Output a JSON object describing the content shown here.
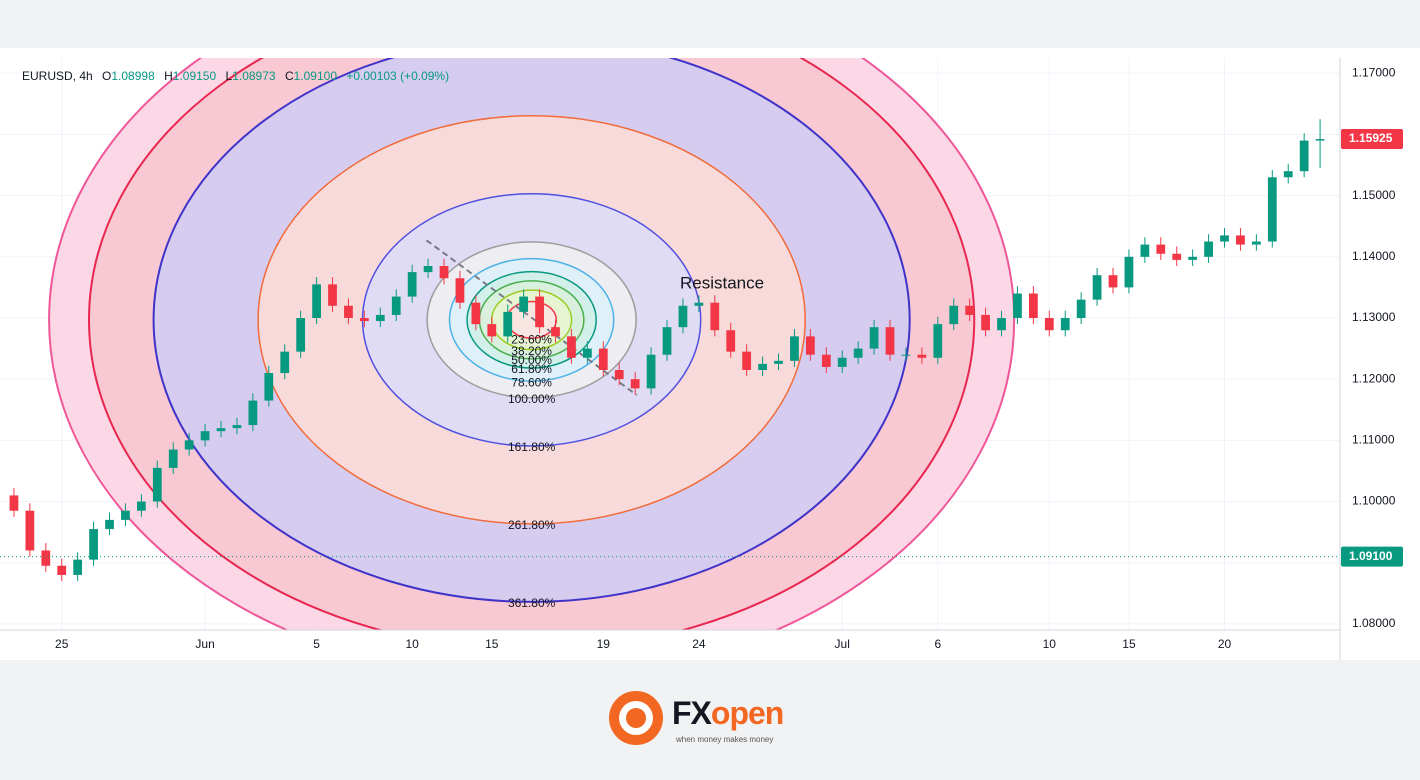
{
  "header": {
    "symbol": "EURUSD, 4h",
    "ohlc": [
      {
        "key": "O",
        "value": "1.08998"
      },
      {
        "key": "H",
        "value": "1.09150"
      },
      {
        "key": "L",
        "value": "1.08973"
      },
      {
        "key": "C",
        "value": "1.09100"
      }
    ],
    "change": "+0.00103 (+0.09%)"
  },
  "logo": {
    "prefix": "FX",
    "suffix": "open",
    "tagline": "when money makes money"
  },
  "chart_data": {
    "type": "candlestick",
    "up_color": "#089981",
    "down_color": "#f23645",
    "candles": [
      [
        1.101,
        1.1022,
        1.0975,
        1.0985
      ],
      [
        1.0985,
        1.0997,
        1.091,
        1.092
      ],
      [
        1.092,
        1.0932,
        1.0885,
        1.0895
      ],
      [
        1.0895,
        1.0907,
        1.087,
        1.088
      ],
      [
        1.088,
        1.0917,
        1.087,
        1.0905
      ],
      [
        1.0905,
        1.0967,
        1.0895,
        1.0955
      ],
      [
        1.0955,
        1.0982,
        1.0945,
        1.097
      ],
      [
        1.097,
        1.0997,
        1.096,
        1.0985
      ],
      [
        1.0985,
        1.1012,
        1.0975,
        1.1
      ],
      [
        1.1,
        1.1067,
        1.099,
        1.1055
      ],
      [
        1.1055,
        1.1097,
        1.1045,
        1.1085
      ],
      [
        1.1085,
        1.1112,
        1.1075,
        1.11
      ],
      [
        1.11,
        1.1127,
        1.109,
        1.1115
      ],
      [
        1.1115,
        1.1132,
        1.1105,
        1.112
      ],
      [
        1.112,
        1.1137,
        1.111,
        1.1125
      ],
      [
        1.1125,
        1.1177,
        1.1115,
        1.1165
      ],
      [
        1.1165,
        1.1222,
        1.1155,
        1.121
      ],
      [
        1.121,
        1.1257,
        1.12,
        1.1245
      ],
      [
        1.1245,
        1.1312,
        1.1235,
        1.13
      ],
      [
        1.13,
        1.1367,
        1.129,
        1.1355
      ],
      [
        1.1355,
        1.1367,
        1.131,
        1.132
      ],
      [
        1.132,
        1.1332,
        1.129,
        1.13
      ],
      [
        1.13,
        1.1312,
        1.1285,
        1.1295
      ],
      [
        1.1295,
        1.1317,
        1.1285,
        1.1305
      ],
      [
        1.1305,
        1.1347,
        1.1295,
        1.1335
      ],
      [
        1.1335,
        1.1387,
        1.1325,
        1.1375
      ],
      [
        1.1375,
        1.1397,
        1.1365,
        1.1385
      ],
      [
        1.1385,
        1.1397,
        1.1355,
        1.1365
      ],
      [
        1.1365,
        1.1377,
        1.1315,
        1.1325
      ],
      [
        1.1325,
        1.1337,
        1.128,
        1.129
      ],
      [
        1.129,
        1.1302,
        1.126,
        1.127
      ],
      [
        1.127,
        1.1322,
        1.126,
        1.131
      ],
      [
        1.131,
        1.1347,
        1.13,
        1.1335
      ],
      [
        1.1335,
        1.1347,
        1.1275,
        1.1285
      ],
      [
        1.1285,
        1.1297,
        1.126,
        1.127
      ],
      [
        1.127,
        1.1282,
        1.1225,
        1.1235
      ],
      [
        1.1235,
        1.1262,
        1.1225,
        1.125
      ],
      [
        1.125,
        1.1262,
        1.1205,
        1.1215
      ],
      [
        1.1215,
        1.1227,
        1.119,
        1.12
      ],
      [
        1.12,
        1.1212,
        1.1175,
        1.1185
      ],
      [
        1.1185,
        1.1252,
        1.1175,
        1.124
      ],
      [
        1.124,
        1.1297,
        1.123,
        1.1285
      ],
      [
        1.1285,
        1.1332,
        1.1275,
        1.132
      ],
      [
        1.132,
        1.1337,
        1.131,
        1.1325
      ],
      [
        1.1325,
        1.1337,
        1.127,
        1.128
      ],
      [
        1.128,
        1.1292,
        1.1235,
        1.1245
      ],
      [
        1.1245,
        1.1257,
        1.1205,
        1.1215
      ],
      [
        1.1215,
        1.1237,
        1.1205,
        1.1225
      ],
      [
        1.1225,
        1.1242,
        1.1215,
        1.123
      ],
      [
        1.123,
        1.1282,
        1.122,
        1.127
      ],
      [
        1.127,
        1.1282,
        1.123,
        1.124
      ],
      [
        1.124,
        1.1252,
        1.121,
        1.122
      ],
      [
        1.122,
        1.1247,
        1.121,
        1.1235
      ],
      [
        1.1235,
        1.1262,
        1.1225,
        1.125
      ],
      [
        1.125,
        1.1297,
        1.124,
        1.1285
      ],
      [
        1.1285,
        1.1297,
        1.123,
        1.124
      ],
      [
        1.124,
        1.1252,
        1.123,
        1.124
      ],
      [
        1.124,
        1.1252,
        1.1225,
        1.1235
      ],
      [
        1.1235,
        1.1302,
        1.1225,
        1.129
      ],
      [
        1.129,
        1.1332,
        1.128,
        1.132
      ],
      [
        1.132,
        1.1332,
        1.1295,
        1.1305
      ],
      [
        1.1305,
        1.1317,
        1.127,
        1.128
      ],
      [
        1.128,
        1.1312,
        1.127,
        1.13
      ],
      [
        1.13,
        1.1352,
        1.129,
        1.134
      ],
      [
        1.134,
        1.1352,
        1.129,
        1.13
      ],
      [
        1.13,
        1.1312,
        1.127,
        1.128
      ],
      [
        1.128,
        1.1312,
        1.127,
        1.13
      ],
      [
        1.13,
        1.1342,
        1.129,
        1.133
      ],
      [
        1.133,
        1.1382,
        1.132,
        1.137
      ],
      [
        1.137,
        1.1382,
        1.134,
        1.135
      ],
      [
        1.135,
        1.1412,
        1.134,
        1.14
      ],
      [
        1.14,
        1.1432,
        1.139,
        1.142
      ],
      [
        1.142,
        1.1432,
        1.1395,
        1.1405
      ],
      [
        1.1405,
        1.1417,
        1.1385,
        1.1395
      ],
      [
        1.1395,
        1.1412,
        1.1385,
        1.14
      ],
      [
        1.14,
        1.1437,
        1.139,
        1.1425
      ],
      [
        1.1425,
        1.1447,
        1.1415,
        1.1435
      ],
      [
        1.1435,
        1.1447,
        1.141,
        1.142
      ],
      [
        1.142,
        1.1437,
        1.141,
        1.1425
      ],
      [
        1.1425,
        1.1542,
        1.1415,
        1.153
      ],
      [
        1.153,
        1.1552,
        1.152,
        1.154
      ],
      [
        1.154,
        1.1602,
        1.153,
        1.159
      ],
      [
        1.159,
        1.1625,
        1.1545,
        1.15925
      ]
    ],
    "xlim": [
      -0.75,
      83.25
    ],
    "xticks": [
      {
        "value": 3,
        "label": "25"
      },
      {
        "value": 12,
        "label": "Jun"
      },
      {
        "value": 19,
        "label": "5"
      },
      {
        "value": 25,
        "label": "10"
      },
      {
        "value": 30,
        "label": "15"
      },
      {
        "value": 37,
        "label": "19"
      },
      {
        "value": 43,
        "label": "24"
      },
      {
        "value": 52,
        "label": "Jul"
      },
      {
        "value": 58,
        "label": "6"
      },
      {
        "value": 65,
        "label": "10"
      },
      {
        "value": 70,
        "label": "15"
      },
      {
        "value": 76,
        "label": "20"
      }
    ],
    "ylim": [
      1.079,
      1.1725
    ],
    "yticks": [
      {
        "value": 1.08,
        "label": "1.08000"
      },
      {
        "value": 1.09,
        "label": "1.09000"
      },
      {
        "value": 1.1,
        "label": "1.10000"
      },
      {
        "value": 1.11,
        "label": "1.11000"
      },
      {
        "value": 1.12,
        "label": "1.12000"
      },
      {
        "value": 1.13,
        "label": "1.13000"
      },
      {
        "value": 1.14,
        "label": "1.14000"
      },
      {
        "value": 1.15,
        "label": "1.15000"
      },
      {
        "value": 1.16,
        "label": "1.16000"
      },
      {
        "value": 1.17,
        "label": "1.17000"
      }
    ],
    "grid": true,
    "price_labels": [
      {
        "value": 1.15925,
        "label": "1.15925",
        "color": "#f23645"
      },
      {
        "value": 1.091,
        "label": "1.09100",
        "color": "#089981"
      }
    ],
    "fib_circles": {
      "center": {
        "x": 32.5,
        "price": 1.1297
      },
      "radius": {
        "x": 6.56,
        "price": 0.01274
      },
      "trend_line": {
        "x": [
          25.9,
          39.1
        ],
        "price": [
          1.1427,
          1.1174
        ]
      },
      "levels": [
        23.6,
        38.2,
        50,
        61.8,
        78.6,
        100,
        161.8,
        261.8,
        361.8,
        423.6,
        461.8
      ],
      "level_labels": [
        "23.60%",
        "38.20%",
        "50.00%",
        "61.80%",
        "78.60%",
        "100.00%",
        "161.80%",
        "261.80%",
        "361.80%",
        null,
        null
      ],
      "colors": [
        "#f23645",
        "#9acd1e",
        "#4caf50",
        "#089981",
        "#4fb3e8",
        "#9e9e9e",
        "#5050e0",
        "#f26b3a",
        "#3f33c9",
        "#e8264f",
        "#f0569a"
      ],
      "fills": [
        "#fbe3e6",
        "#eaf5cf",
        "#d9f0db",
        "#d0eee7",
        "#dcf0f9",
        "#f0f0f0",
        "#dcdcfa",
        "#fddcd5",
        "#cfcdf5",
        "#f7c6cf",
        "#fbd1e2"
      ]
    },
    "annotation": "Resistance"
  }
}
